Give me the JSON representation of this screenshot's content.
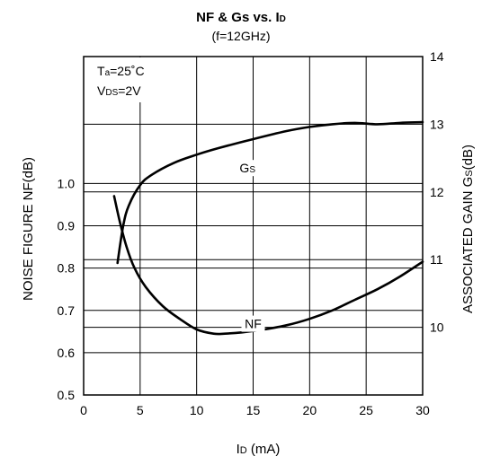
{
  "chart_data": {
    "type": "line",
    "title": {
      "main": "NF & Gs vs. I",
      "main_sub": "D",
      "subtitle": "(f=12GHz)"
    },
    "xlabel": {
      "main": "I",
      "sub": "D",
      "rest": " (mA)"
    },
    "ylabel_left": "NOISE FIGURE NF(dB)",
    "ylabel_right": {
      "main": "ASSOCIATED GAIN G",
      "sub": "S",
      "rest": "(dB)"
    },
    "xlim": [
      0,
      30
    ],
    "ylim_left": [
      0.5,
      1.3
    ],
    "ylim_right": [
      9,
      14
    ],
    "x_ticks": [
      {
        "value": 0,
        "label": "0"
      },
      {
        "value": 5,
        "label": "5"
      },
      {
        "value": 10,
        "label": "10"
      },
      {
        "value": 15,
        "label": "15"
      },
      {
        "value": 20,
        "label": "20"
      },
      {
        "value": 25,
        "label": "25"
      },
      {
        "value": 30,
        "label": "30"
      }
    ],
    "y_left_ticks": [
      {
        "value": 0.5,
        "label": "0.5"
      },
      {
        "value": 0.6,
        "label": "0.6"
      },
      {
        "value": 0.7,
        "label": "0.7"
      },
      {
        "value": 0.8,
        "label": "0.8"
      },
      {
        "value": 0.9,
        "label": "0.9"
      },
      {
        "value": 1.0,
        "label": "1.0"
      }
    ],
    "y_right_ticks": [
      {
        "value": 10,
        "label": "10"
      },
      {
        "value": 11,
        "label": "11"
      },
      {
        "value": 12,
        "label": "12"
      },
      {
        "value": 13,
        "label": "13"
      },
      {
        "value": 14,
        "label": "14"
      }
    ],
    "conditions": [
      {
        "main": "T",
        "sub": "a",
        "rest": "=25˚C"
      },
      {
        "main": "V",
        "sub": "DS",
        "rest": "=2V"
      }
    ],
    "grid": true,
    "series": [
      {
        "name": "NF",
        "name_main": "NF",
        "name_sub": "",
        "axis": "left",
        "label_at": [
          15,
          0.66
        ],
        "x": [
          2.7,
          3.2,
          3.8,
          4.5,
          5.5,
          7,
          8.5,
          10,
          11.5,
          12.5,
          14,
          16,
          18,
          20,
          22,
          24,
          26,
          28,
          30
        ],
        "y": [
          0.97,
          0.91,
          0.85,
          0.8,
          0.755,
          0.71,
          0.68,
          0.655,
          0.645,
          0.645,
          0.648,
          0.655,
          0.665,
          0.68,
          0.7,
          0.725,
          0.75,
          0.78,
          0.815
        ]
      },
      {
        "name": "Gs",
        "name_main": "G",
        "name_sub": "S",
        "axis": "right",
        "label_at": [
          14.5,
          12.3
        ],
        "x": [
          3,
          3.5,
          4,
          5,
          6,
          8,
          10,
          12,
          15,
          18,
          20,
          22,
          24,
          26,
          28,
          30
        ],
        "y": [
          10.95,
          11.5,
          11.8,
          12.1,
          12.25,
          12.43,
          12.55,
          12.65,
          12.78,
          12.9,
          12.96,
          13.0,
          13.02,
          13.0,
          13.02,
          13.03
        ]
      }
    ]
  }
}
